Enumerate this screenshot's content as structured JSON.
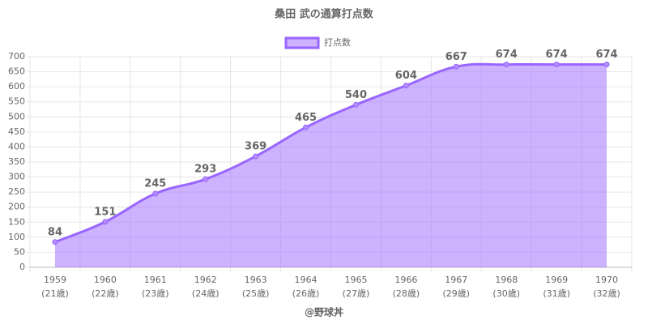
{
  "chart_data": {
    "type": "area",
    "title": "桑田 武の通算打点数",
    "credit": "@野球丼",
    "categories": [
      [
        "1959",
        "(21歳)"
      ],
      [
        "1960",
        "(22歳)"
      ],
      [
        "1961",
        "(23歳)"
      ],
      [
        "1962",
        "(24歳)"
      ],
      [
        "1963",
        "(25歳)"
      ],
      [
        "1964",
        "(26歳)"
      ],
      [
        "1965",
        "(27歳)"
      ],
      [
        "1966",
        "(28歳)"
      ],
      [
        "1967",
        "(29歳)"
      ],
      [
        "1968",
        "(30歳)"
      ],
      [
        "1969",
        "(31歳)"
      ],
      [
        "1970",
        "(32歳)"
      ]
    ],
    "series": [
      {
        "name": "打点数",
        "color": "#9966ff",
        "values": [
          84,
          151,
          245,
          293,
          369,
          465,
          540,
          604,
          667,
          674,
          674,
          674
        ]
      }
    ],
    "ylim": [
      0,
      700
    ],
    "yticks": [
      0,
      50,
      100,
      150,
      200,
      250,
      300,
      350,
      400,
      450,
      500,
      550,
      600,
      650,
      700
    ],
    "grid": true,
    "legend": "top"
  }
}
